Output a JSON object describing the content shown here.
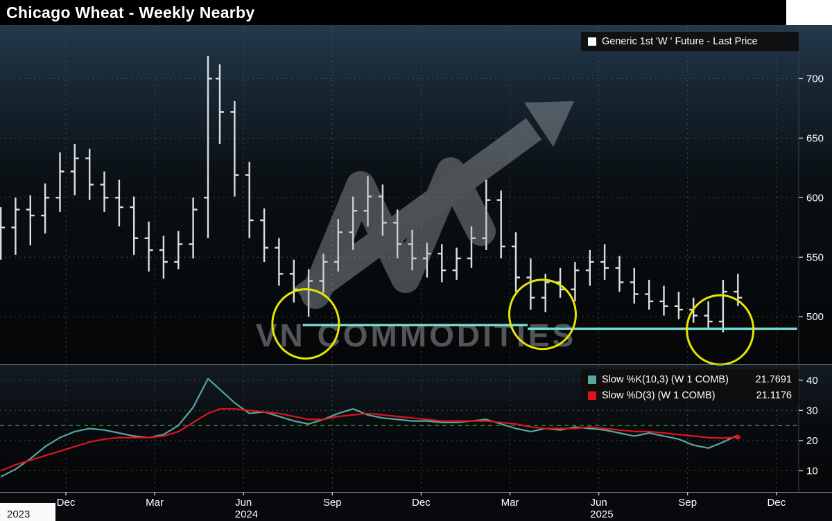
{
  "header": {
    "title": "Chicago Wheat - Weekly Nearby"
  },
  "main_legend": {
    "swatch_color": "#ffffff",
    "label": "Generic 1st 'W ' Future - Last Price"
  },
  "stoch_legend": {
    "rows": [
      {
        "swatch_color": "#56a89f",
        "label": "Slow %K(10,3) (W 1 COMB)",
        "value": "21.7691"
      },
      {
        "swatch_color": "#e0141c",
        "label": "Slow %D(3) (W 1 COMB)",
        "value": "21.1176"
      }
    ]
  },
  "watermark": {
    "text": "VN COMMODITIES"
  },
  "colors": {
    "title_bar": "#000000",
    "background": "#050607",
    "bar": "#dcdfe2",
    "support": "#74ddd6",
    "circle": "#e6e600",
    "k": "#56a89f",
    "d": "#e0141c",
    "threshold": "#2f7d2f",
    "grid": "#46555e",
    "axis_text": "#ffffff"
  },
  "x_axis": {
    "month_ticks": [
      {
        "label": "Dec",
        "t": 0
      },
      {
        "label": "Mar",
        "t": 3
      },
      {
        "label": "Jun",
        "t": 6
      },
      {
        "label": "Sep",
        "t": 9
      },
      {
        "label": "Dec",
        "t": 12
      },
      {
        "label": "Mar",
        "t": 15
      },
      {
        "label": "Jun",
        "t": 18
      },
      {
        "label": "Sep",
        "t": 21
      },
      {
        "label": "Dec",
        "t": 24
      }
    ],
    "year_labels": [
      {
        "label": "2023",
        "t": -1.6,
        "on_light_patch": true
      },
      {
        "label": "2024",
        "t": 6.1
      },
      {
        "label": "2025",
        "t": 18.1
      }
    ]
  },
  "chart_data": [
    {
      "type": "bar",
      "variant": "ohlc",
      "title": "Generic 1st 'W ' Future - Last Price",
      "x_unit": "months_from_dec_2023",
      "ylim": [
        460,
        745
      ],
      "y_ticks": [
        700,
        650,
        600,
        550,
        500
      ],
      "grid": true,
      "legend_position": "top-right",
      "bar_format": [
        "t",
        "open",
        "high",
        "low",
        "close"
      ],
      "bars": [
        [
          -2.2,
          570,
          592,
          548,
          575
        ],
        [
          -1.7,
          575,
          600,
          552,
          590
        ],
        [
          -1.2,
          590,
          602,
          560,
          585
        ],
        [
          -0.7,
          585,
          612,
          570,
          600
        ],
        [
          -0.2,
          600,
          638,
          588,
          622
        ],
        [
          0.3,
          622,
          645,
          602,
          633
        ],
        [
          0.8,
          633,
          641,
          598,
          611
        ],
        [
          1.3,
          611,
          622,
          588,
          600
        ],
        [
          1.8,
          600,
          615,
          576,
          592
        ],
        [
          2.3,
          592,
          601,
          552,
          566
        ],
        [
          2.8,
          566,
          580,
          538,
          556
        ],
        [
          3.3,
          556,
          568,
          532,
          546
        ],
        [
          3.8,
          546,
          572,
          540,
          561
        ],
        [
          4.3,
          561,
          600,
          549,
          590
        ],
        [
          4.8,
          600,
          719,
          566,
          700
        ],
        [
          5.2,
          700,
          712,
          645,
          672
        ],
        [
          5.7,
          672,
          681,
          601,
          619
        ],
        [
          6.2,
          619,
          630,
          566,
          581
        ],
        [
          6.7,
          581,
          591,
          546,
          558
        ],
        [
          7.2,
          558,
          566,
          526,
          536
        ],
        [
          7.7,
          536,
          548,
          512,
          523
        ],
        [
          8.2,
          523,
          540,
          500,
          530
        ],
        [
          8.7,
          530,
          553,
          520,
          546
        ],
        [
          9.2,
          546,
          582,
          538,
          571
        ],
        [
          9.7,
          571,
          601,
          556,
          589
        ],
        [
          10.2,
          589,
          618,
          576,
          601
        ],
        [
          10.7,
          601,
          611,
          568,
          579
        ],
        [
          11.2,
          579,
          590,
          549,
          561
        ],
        [
          11.7,
          561,
          573,
          539,
          549
        ],
        [
          12.2,
          549,
          562,
          533,
          553
        ],
        [
          12.7,
          553,
          561,
          529,
          539
        ],
        [
          13.2,
          539,
          558,
          531,
          549
        ],
        [
          13.7,
          549,
          576,
          541,
          566
        ],
        [
          14.2,
          566,
          615,
          556,
          598
        ],
        [
          14.7,
          598,
          606,
          549,
          559
        ],
        [
          15.2,
          559,
          571,
          521,
          533
        ],
        [
          15.7,
          533,
          549,
          506,
          516
        ],
        [
          16.2,
          516,
          536,
          504,
          529
        ],
        [
          16.7,
          529,
          541,
          516,
          523
        ],
        [
          17.2,
          523,
          546,
          513,
          539
        ],
        [
          17.7,
          539,
          556,
          526,
          546
        ],
        [
          18.2,
          546,
          561,
          531,
          541
        ],
        [
          18.7,
          541,
          551,
          521,
          529
        ],
        [
          19.2,
          529,
          541,
          511,
          519
        ],
        [
          19.7,
          519,
          531,
          506,
          513
        ],
        [
          20.2,
          513,
          526,
          501,
          509
        ],
        [
          20.7,
          509,
          521,
          498,
          506
        ],
        [
          21.2,
          506,
          516,
          495,
          501
        ],
        [
          21.7,
          501,
          513,
          490,
          496
        ],
        [
          22.2,
          496,
          531,
          487,
          521
        ],
        [
          22.7,
          521,
          536,
          509,
          516
        ]
      ],
      "support_line": {
        "color": "#74ddd6",
        "segments": [
          {
            "price": 493,
            "t1": 8.0,
            "t2": 15.6
          },
          {
            "price": 490,
            "t1": 15.6,
            "t2": 24.7
          }
        ]
      },
      "highlight_circles": [
        {
          "t": 8.1,
          "price": 494
        },
        {
          "t": 16.1,
          "price": 502
        },
        {
          "t": 22.1,
          "price": 489
        }
      ]
    },
    {
      "type": "line",
      "title": "Slow Stochastics",
      "ylim": [
        3,
        45
      ],
      "y_ticks": [
        40,
        30,
        20,
        10
      ],
      "threshold": 25,
      "grid": true,
      "legend_position": "top-right",
      "x": [
        -2.2,
        -1.7,
        -1.2,
        -0.7,
        -0.2,
        0.3,
        0.8,
        1.3,
        1.8,
        2.3,
        2.8,
        3.3,
        3.8,
        4.3,
        4.8,
        5.2,
        5.7,
        6.2,
        6.7,
        7.2,
        7.7,
        8.2,
        8.7,
        9.2,
        9.7,
        10.2,
        10.7,
        11.2,
        11.7,
        12.2,
        12.7,
        13.2,
        13.7,
        14.2,
        14.7,
        15.2,
        15.7,
        16.2,
        16.7,
        17.2,
        17.7,
        18.2,
        18.7,
        19.2,
        19.7,
        20.2,
        20.7,
        21.2,
        21.7,
        22.2,
        22.7
      ],
      "series": [
        {
          "name": "Slow %K(10,3) (W 1 COMB)",
          "color": "#56a89f",
          "last_value": 21.7691,
          "values": [
            8,
            10.5,
            14,
            18,
            21,
            23,
            24,
            23.5,
            22.5,
            21.5,
            21,
            22,
            25,
            31,
            40.5,
            37,
            32.5,
            29,
            29.5,
            28,
            26.5,
            25.5,
            27,
            29,
            30.5,
            28.5,
            27.5,
            27,
            26.5,
            26.5,
            26,
            26,
            26.5,
            27,
            25.5,
            24,
            23,
            24,
            23.5,
            24.5,
            24,
            23.5,
            22.5,
            21.5,
            22.5,
            21.5,
            20.5,
            18.5,
            17.5,
            19.5,
            21.7691
          ]
        },
        {
          "name": "Slow %D(3) (W 1 COMB)",
          "color": "#e0141c",
          "last_value": 21.1176,
          "values": [
            10,
            12,
            13.5,
            15,
            16.5,
            18,
            19.5,
            20.5,
            21,
            21,
            21,
            21.5,
            23,
            26,
            29,
            30.5,
            30.5,
            30,
            29.5,
            29,
            28,
            27,
            27,
            28,
            28.5,
            29,
            28.5,
            28,
            27.5,
            27,
            26.5,
            26.5,
            26.5,
            26.5,
            26,
            25.5,
            24.5,
            24,
            24,
            24,
            24.5,
            24,
            23.5,
            23,
            23,
            22.5,
            22,
            21.5,
            21,
            20.8,
            21.1176
          ]
        }
      ]
    }
  ]
}
